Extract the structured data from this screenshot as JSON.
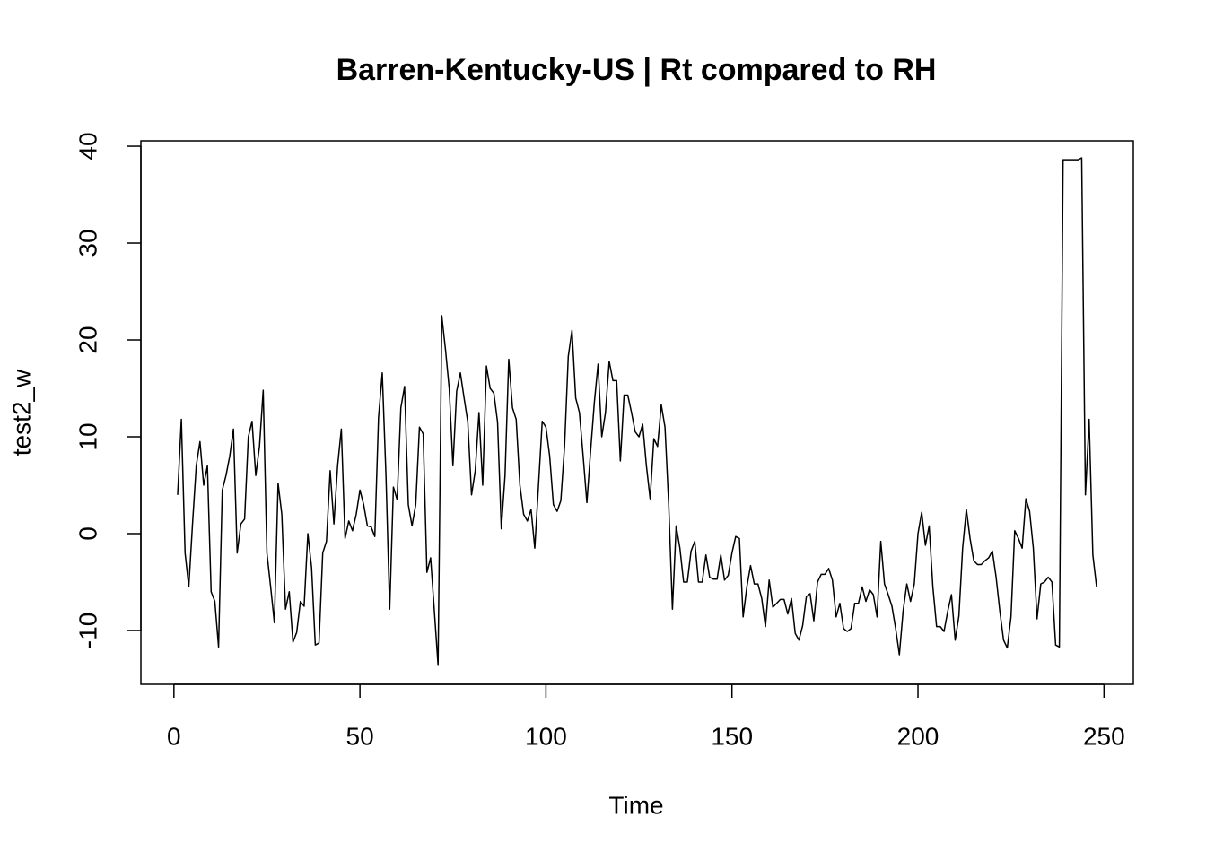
{
  "chart_data": {
    "type": "line",
    "title": "Barren-Kentucky-US | Rt compared to RH",
    "x_label": "Time",
    "y_label": "test2_w",
    "color": "#000000",
    "grid": false,
    "xlim": [
      -8.88,
      257.88
    ],
    "ylim": [
      -15.56,
      40.56
    ],
    "xticks": [
      0,
      50,
      100,
      150,
      200,
      250
    ],
    "yticks": [
      -10,
      0,
      10,
      20,
      30,
      40
    ],
    "x": [
      1,
      2,
      3,
      4,
      5,
      6,
      7,
      8,
      9,
      10,
      11,
      12,
      13,
      14,
      15,
      16,
      17,
      18,
      19,
      20,
      21,
      22,
      23,
      24,
      25,
      26,
      27,
      28,
      29,
      30,
      31,
      32,
      33,
      34,
      35,
      36,
      37,
      38,
      39,
      40,
      41,
      42,
      43,
      44,
      45,
      46,
      47,
      48,
      49,
      50,
      51,
      52,
      53,
      54,
      55,
      56,
      57,
      58,
      59,
      60,
      61,
      62,
      63,
      64,
      65,
      66,
      67,
      68,
      69,
      70,
      71,
      72,
      73,
      74,
      75,
      76,
      77,
      78,
      79,
      80,
      81,
      82,
      83,
      84,
      85,
      86,
      87,
      88,
      89,
      90,
      91,
      92,
      93,
      94,
      95,
      96,
      97,
      98,
      99,
      100,
      101,
      102,
      103,
      104,
      105,
      106,
      107,
      108,
      109,
      110,
      111,
      112,
      113,
      114,
      115,
      116,
      117,
      118,
      119,
      120,
      121,
      122,
      123,
      124,
      125,
      126,
      127,
      128,
      129,
      130,
      131,
      132,
      133,
      134,
      135,
      136,
      137,
      138,
      139,
      140,
      141,
      142,
      143,
      144,
      145,
      146,
      147,
      148,
      149,
      150,
      151,
      152,
      153,
      154,
      155,
      156,
      157,
      158,
      159,
      160,
      161,
      162,
      163,
      164,
      165,
      166,
      167,
      168,
      169,
      170,
      171,
      172,
      173,
      174,
      175,
      176,
      177,
      178,
      179,
      180,
      181,
      182,
      183,
      184,
      185,
      186,
      187,
      188,
      189,
      190,
      191,
      192,
      193,
      194,
      195,
      196,
      197,
      198,
      199,
      200,
      201,
      202,
      203,
      204,
      205,
      206,
      207,
      208,
      209,
      210,
      211,
      212,
      213,
      214,
      215,
      216,
      217,
      218,
      219,
      220,
      221,
      222,
      223,
      224,
      225,
      226,
      227,
      228,
      229,
      230,
      231,
      232,
      233,
      234,
      235,
      236,
      237,
      238,
      239,
      240,
      241,
      242,
      243,
      244,
      245,
      246,
      247,
      248
    ],
    "values": [
      4,
      11.8,
      -2,
      -5.5,
      1,
      7,
      9.5,
      5,
      7,
      -6,
      -7,
      -11.7,
      4.5,
      6,
      8,
      10.8,
      -2,
      1,
      1.5,
      10,
      11.6,
      6,
      9,
      14.8,
      -2,
      -5.5,
      -9.2,
      5.2,
      2,
      -7.8,
      -6,
      -11.2,
      -10.2,
      -7,
      -7.5,
      0,
      -3.5,
      -11.5,
      -11.3,
      -2,
      -0.8,
      6.5,
      1,
      7,
      10.8,
      -0.5,
      1.3,
      0.3,
      2,
      4.5,
      3,
      0.8,
      0.7,
      -0.3,
      12,
      16.6,
      6,
      -7.8,
      4.8,
      3.5,
      13,
      15.2,
      3,
      0.8,
      3,
      11,
      10.3,
      -4,
      -2.5,
      -8,
      -13.6,
      22.5,
      19,
      15,
      7,
      14.7,
      16.6,
      14,
      11.5,
      4,
      6.5,
      12.5,
      5,
      17.3,
      15,
      14.5,
      11.5,
      0.5,
      6,
      18,
      13,
      11.8,
      5,
      2,
      1.3,
      2.5,
      -1.5,
      5,
      11.6,
      11,
      8,
      3,
      2.3,
      3.4,
      9,
      18.3,
      21,
      14,
      12.5,
      8,
      3.2,
      8.5,
      13.5,
      17.5,
      10,
      12.5,
      17.8,
      15.8,
      15.8,
      7.5,
      14.3,
      14.3,
      12.5,
      10.5,
      10,
      11.3,
      7,
      3.6,
      9.8,
      9,
      13.3,
      11,
      3,
      -7.8,
      0.8,
      -1.5,
      -5,
      -5,
      -1.8,
      -0.8,
      -5,
      -5,
      -2.2,
      -4.5,
      -4.7,
      -4.7,
      -2.2,
      -4.8,
      -4.3,
      -2,
      -0.3,
      -0.5,
      -8.6,
      -5.5,
      -3.3,
      -5.2,
      -5.2,
      -6.7,
      -9.6,
      -4.8,
      -7.6,
      -7.2,
      -6.8,
      -6.8,
      -8.3,
      -6.7,
      -10.3,
      -11,
      -9.5,
      -6.5,
      -6.2,
      -9,
      -5,
      -4.2,
      -4.2,
      -3.6,
      -4.8,
      -8.6,
      -7.2,
      -9.8,
      -10.1,
      -9.8,
      -7.2,
      -7.2,
      -5.5,
      -7,
      -5.8,
      -6.3,
      -8.6,
      -0.8,
      -5.2,
      -6.3,
      -7.5,
      -9.8,
      -12.5,
      -8,
      -5.2,
      -7,
      -5.2,
      0,
      2.2,
      -1.2,
      0.8,
      -5.5,
      -9.6,
      -9.6,
      -10.1,
      -8,
      -6.3,
      -11,
      -8.5,
      -1.5,
      2.5,
      -0.5,
      -2.8,
      -3.2,
      -3.2,
      -2.8,
      -2.5,
      -1.8,
      -4.5,
      -8,
      -11,
      -11.8,
      -8.6,
      0.3,
      -0.5,
      -1.5,
      3.6,
      2.3,
      -1.5,
      -8.8,
      -5.2,
      -5,
      -4.5,
      -5,
      -11.5,
      -11.7,
      38.6,
      38.6,
      38.6,
      38.6,
      38.6,
      38.8,
      4,
      11.8,
      -2.2,
      -5.5
    ]
  }
}
